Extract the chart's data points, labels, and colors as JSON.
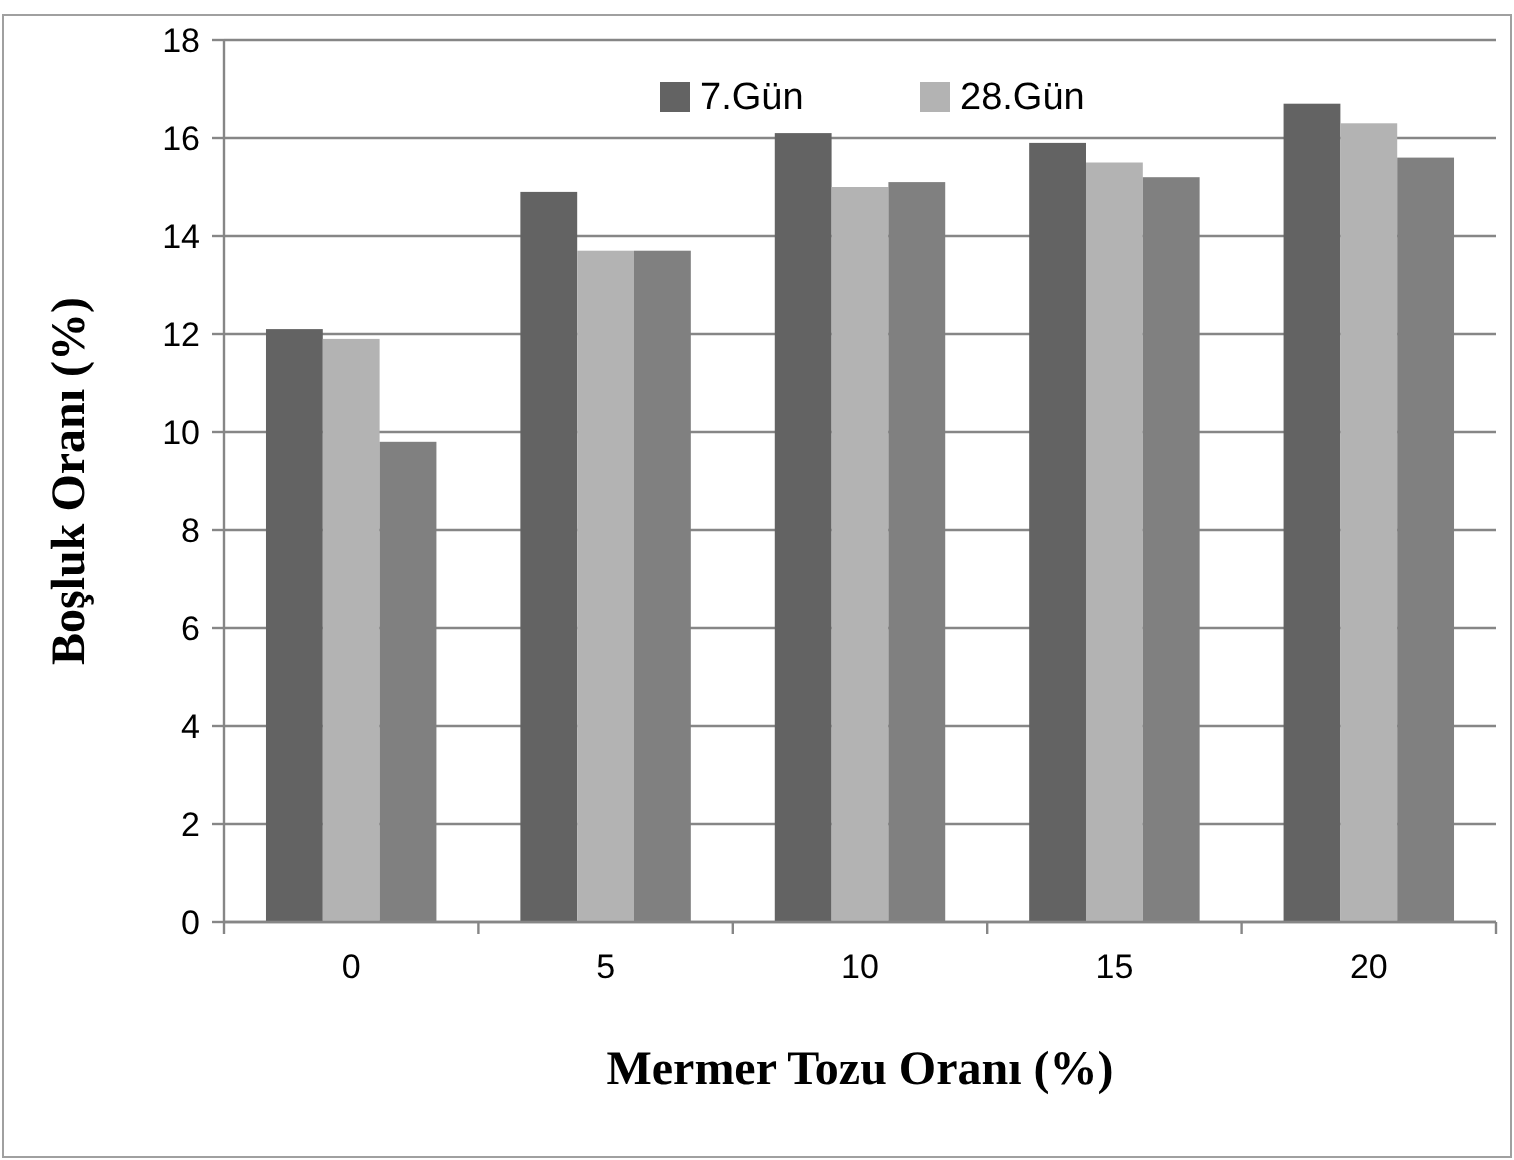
{
  "chart_data": {
    "type": "bar",
    "xlabel": "Mermer Tozu Oranı (%)",
    "ylabel": "Boşluk Oranı (%)",
    "categories": [
      "0",
      "5",
      "10",
      "15",
      "20"
    ],
    "series": [
      {
        "name": "7.Gün",
        "color": "#636363",
        "values": [
          12.1,
          14.9,
          16.1,
          15.9,
          16.7
        ]
      },
      {
        "name": "28.Gün",
        "color": "#b3b3b3",
        "values": [
          11.9,
          13.7,
          15.0,
          15.5,
          16.3
        ]
      },
      {
        "color": "#808080",
        "values": [
          9.8,
          13.7,
          15.1,
          15.2,
          15.6
        ]
      }
    ],
    "ylim": [
      0,
      18
    ],
    "yticks": [
      0,
      2,
      4,
      6,
      8,
      10,
      12,
      14,
      16,
      18
    ],
    "grid": "y",
    "legend": "top"
  }
}
